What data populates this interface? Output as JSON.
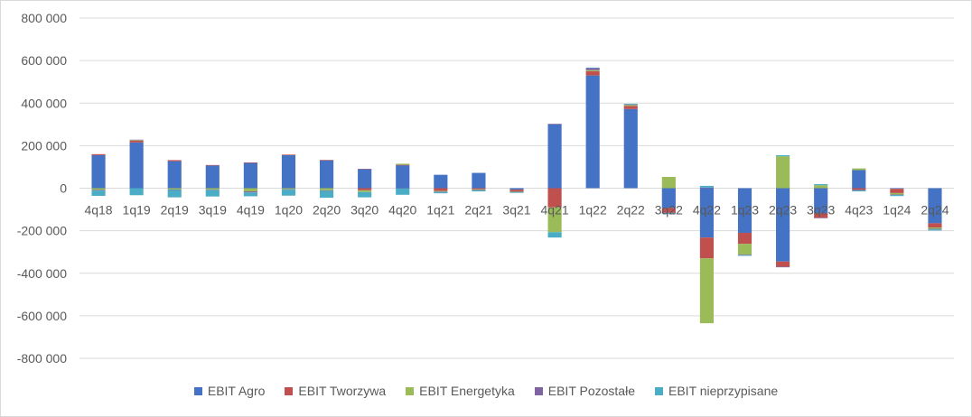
{
  "chart_data": {
    "type": "bar",
    "stacked": true,
    "categories": [
      "4q18",
      "1q19",
      "2q19",
      "3q19",
      "4q19",
      "1q20",
      "2q20",
      "3q20",
      "4q20",
      "1q21",
      "2q21",
      "3q21",
      "4q21",
      "1q22",
      "2q22",
      "3q22",
      "4q22",
      "1q23",
      "2q23",
      "3q23",
      "4q23",
      "1q24",
      "2q24"
    ],
    "ylim": [
      -800000,
      800000
    ],
    "yticks": [
      800000,
      600000,
      400000,
      200000,
      0,
      -200000,
      -400000,
      -600000,
      -800000
    ],
    "ytick_labels": [
      "800 000",
      "600 000",
      "400 000",
      "200 000",
      "0",
      "-200 000",
      "-400 000",
      "-600 000",
      "-800 000"
    ],
    "grid": true,
    "legend_position": "bottom",
    "series": [
      {
        "name": "EBIT Agro",
        "color": "#4472c4",
        "values": [
          155000,
          215000,
          127000,
          107000,
          119000,
          155000,
          131000,
          87000,
          108000,
          63000,
          72000,
          -7000,
          300000,
          530000,
          372000,
          -93000,
          -232000,
          -210000,
          -345000,
          -117000,
          85000,
          -3000,
          -165000
        ]
      },
      {
        "name": "EBIT Tworzywa",
        "color": "#c0504d",
        "values": [
          5000,
          8000,
          5000,
          2000,
          2000,
          3000,
          2000,
          -10000,
          2000,
          -13000,
          -5000,
          -8000,
          -90000,
          20000,
          15000,
          -22000,
          -98000,
          -52000,
          -24000,
          -22000,
          -8000,
          -20000,
          -20000
        ]
      },
      {
        "name": "EBIT Energetyka",
        "color": "#9bbb59",
        "values": [
          -8000,
          3000,
          -6000,
          -7000,
          -15000,
          -5000,
          -10000,
          -8000,
          5000,
          -3000,
          -3000,
          -2000,
          -117000,
          5000,
          5000,
          53000,
          -305000,
          -50000,
          150000,
          14000,
          8000,
          -7000,
          -6000
        ]
      },
      {
        "name": "EBIT Pozostałe",
        "color": "#8064a2",
        "values": [
          -3000,
          2000,
          -2000,
          -2000,
          -5000,
          -2000,
          -2000,
          4000,
          -1000,
          -2000,
          -2000,
          -2000,
          3000,
          10000,
          2000,
          -2000,
          3000,
          -3000,
          -3000,
          -2000,
          -2000,
          -2000,
          -3000
        ]
      },
      {
        "name": "EBIT nieprzypisane",
        "color": "#4bacc6",
        "values": [
          -25000,
          -33000,
          -35000,
          -30000,
          -18000,
          -28000,
          -33000,
          -25000,
          -30000,
          -6000,
          -5000,
          -3000,
          -25000,
          2000,
          3000,
          -5000,
          8000,
          -3000,
          5000,
          5000,
          -5000,
          -5000,
          -5000
        ]
      }
    ]
  }
}
